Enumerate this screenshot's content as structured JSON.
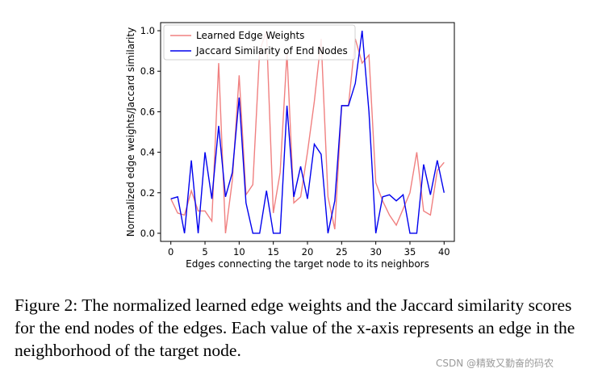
{
  "chart_data": {
    "type": "line",
    "xlabel": "Edges connecting the target node to its neighbors",
    "ylabel": "Normalized edge weights/Jaccard similarity",
    "xlim": [
      -1.5,
      41.5
    ],
    "ylim": [
      -0.04,
      1.04
    ],
    "xticks": [
      0,
      5,
      10,
      15,
      20,
      25,
      30,
      35,
      40
    ],
    "yticks": [
      0.0,
      0.2,
      0.4,
      0.6,
      0.8,
      1.0
    ],
    "grid": false,
    "legend_position": "top-left",
    "x": [
      0,
      1,
      2,
      3,
      4,
      5,
      6,
      7,
      8,
      9,
      10,
      11,
      12,
      13,
      14,
      15,
      16,
      17,
      18,
      19,
      20,
      21,
      22,
      23,
      24,
      25,
      26,
      27,
      28,
      29,
      30,
      31,
      32,
      33,
      34,
      35,
      36,
      37,
      38,
      39,
      40
    ],
    "series": [
      {
        "name": "Learned Edge Weights",
        "color": "#f08080",
        "values": [
          0.17,
          0.1,
          0.09,
          0.21,
          0.11,
          0.11,
          0.06,
          0.84,
          0.0,
          0.26,
          0.78,
          0.19,
          0.24,
          0.9,
          1.0,
          0.1,
          0.3,
          0.89,
          0.15,
          0.18,
          0.4,
          0.65,
          0.96,
          0.18,
          0.02,
          0.63,
          0.63,
          0.96,
          0.84,
          0.88,
          0.25,
          0.16,
          0.09,
          0.04,
          0.12,
          0.2,
          0.4,
          0.11,
          0.09,
          0.31,
          0.35
        ]
      },
      {
        "name": "Jaccard Similarity of End Nodes",
        "color": "#0000ee",
        "values": [
          0.17,
          0.18,
          0.0,
          0.36,
          0.0,
          0.4,
          0.17,
          0.53,
          0.18,
          0.3,
          0.67,
          0.15,
          0.0,
          0.0,
          0.21,
          0.0,
          0.0,
          0.63,
          0.18,
          0.33,
          0.17,
          0.44,
          0.39,
          0.0,
          0.16,
          0.63,
          0.63,
          0.74,
          1.0,
          0.6,
          0.0,
          0.18,
          0.19,
          0.16,
          0.19,
          0.0,
          0.0,
          0.34,
          0.19,
          0.36,
          0.2
        ]
      }
    ]
  },
  "caption": {
    "text": "Figure 2: The normalized learned edge weights and the Jaccard similarity scores for the end nodes of the edges. Each value of the x-axis represents an edge in the neighborhood of the target node."
  },
  "watermark": {
    "text": "CSDN @精致又勤奋的码农"
  }
}
